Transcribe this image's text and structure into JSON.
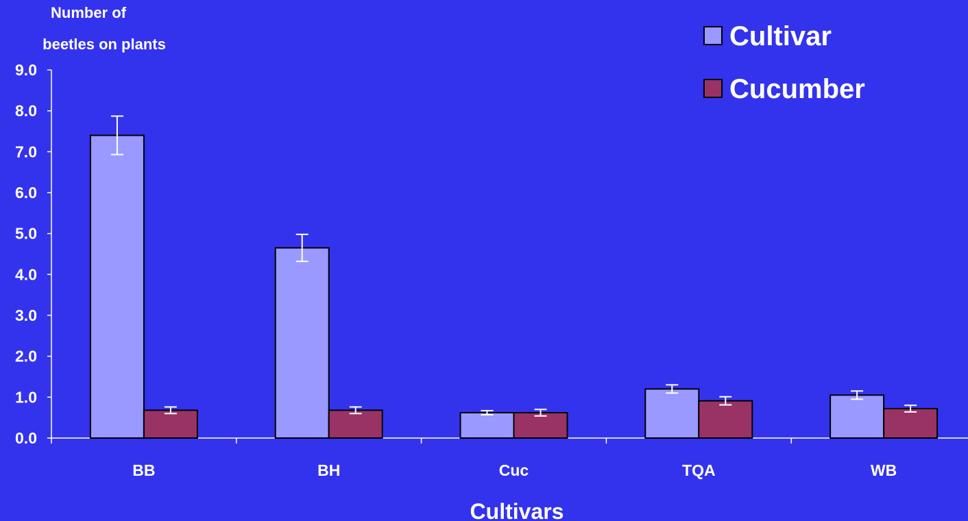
{
  "chart_data": {
    "type": "bar",
    "title": "",
    "ylabel_lines": [
      "Number of",
      "beetles on plants"
    ],
    "xlabel": "Cultivars",
    "categories": [
      "BB",
      "BH",
      "Cuc",
      "TQA",
      "WB"
    ],
    "ylim": [
      0,
      9
    ],
    "yticks": [
      "0.0",
      "1.0",
      "2.0",
      "3.0",
      "4.0",
      "5.0",
      "6.0",
      "7.0",
      "8.0",
      "9.0"
    ],
    "series": [
      {
        "name": "Cultivar",
        "color": "#9999ff",
        "values": [
          7.4,
          4.65,
          0.62,
          1.2,
          1.05
        ],
        "errors": [
          0.47,
          0.33,
          0.05,
          0.1,
          0.1
        ]
      },
      {
        "name": "Cucumber",
        "color": "#993366",
        "values": [
          0.68,
          0.68,
          0.62,
          0.91,
          0.72
        ],
        "errors": [
          0.08,
          0.08,
          0.08,
          0.1,
          0.08
        ]
      }
    ],
    "legend_position": "top-right",
    "grid": false,
    "background_color": "#3333ee",
    "axis_color": "#ffffff",
    "error_bar_color": "#ffffff"
  }
}
